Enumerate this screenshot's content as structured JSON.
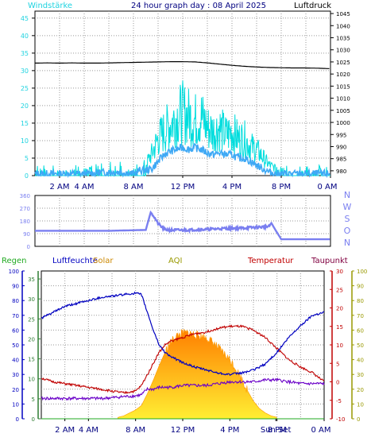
{
  "title": "24 hour graph day : 08 April 2025",
  "colors": {
    "background": "#ffffff",
    "plot_bg": "#ffffff",
    "grid": "#9a9a9a",
    "wind": "#1fd3e0",
    "gust": "#00dddd",
    "wind_avg": "#3fa9f5",
    "pressure": "#000000",
    "direction": "#7a7ff0",
    "humidity": "#0000c0",
    "temperature": "#c00000",
    "dewpoint": "#6a00c8",
    "solar": "#ff8c00",
    "rain_axis": "#2e7d32",
    "rain_label": "#22aa22",
    "aqi": "#999900",
    "taupunkt": "#800040"
  },
  "x_tick_labels": [
    "2 AM",
    "4 AM",
    "8 AM",
    "12 PM",
    "4 PM",
    "8 PM",
    "0 AM"
  ],
  "chart_data": [
    {
      "type": "line",
      "title": "24 hour graph day : 08 April 2025",
      "left_axis_label": "Windstärke",
      "right_axis_label": "Luftdruck",
      "y_left_ticks": [
        0,
        5,
        10,
        15,
        20,
        25,
        30,
        35,
        40,
        45
      ],
      "y_left_range": [
        0,
        47
      ],
      "y_right_ticks": [
        980,
        985,
        990,
        995,
        1000,
        1005,
        1010,
        1015,
        1020,
        1025,
        1030,
        1035,
        1040,
        1045
      ],
      "y_right_range": [
        978,
        1046
      ],
      "x_range_hours": [
        0,
        24
      ],
      "grid": true,
      "series": [
        {
          "name": "Luftdruck",
          "axis": "right",
          "x_hours": [
            0,
            1,
            2,
            3,
            4,
            5,
            6,
            7,
            8,
            9,
            10,
            11,
            12,
            13,
            14,
            15,
            16,
            17,
            18,
            19,
            20,
            21,
            22,
            23,
            24
          ],
          "values": [
            1024.5,
            1024.6,
            1024.5,
            1024.6,
            1024.5,
            1024.5,
            1024.6,
            1024.7,
            1024.8,
            1024.9,
            1025.0,
            1025.1,
            1025.1,
            1025.0,
            1024.6,
            1024.1,
            1023.6,
            1023.2,
            1022.9,
            1022.7,
            1022.6,
            1022.5,
            1022.5,
            1022.4,
            1022.2
          ]
        },
        {
          "name": "Wind gust",
          "axis": "left",
          "x_hours": [
            0,
            2,
            4,
            6,
            7,
            8,
            8.5,
            9,
            9.5,
            10,
            10.5,
            11,
            11.5,
            12,
            12.5,
            13,
            13.5,
            14,
            14.5,
            15,
            15.5,
            16,
            16.5,
            17,
            17.5,
            18,
            18.5,
            19,
            19.5,
            20,
            21,
            22,
            23,
            24
          ],
          "values": [
            1,
            1,
            1,
            2,
            2,
            1,
            3,
            3,
            6,
            10,
            12,
            14,
            16,
            17,
            16,
            15,
            16,
            13,
            12,
            13,
            11,
            12,
            10,
            10,
            8,
            7,
            5,
            3,
            2,
            1,
            1,
            1,
            1,
            1
          ]
        },
        {
          "name": "Wind average",
          "axis": "left",
          "x_hours": [
            0,
            2,
            4,
            6,
            7,
            8,
            8.5,
            9,
            9.5,
            10,
            10.5,
            11,
            11.5,
            12,
            12.5,
            13,
            13.5,
            14,
            14.5,
            15,
            15.5,
            16,
            16.5,
            17,
            17.5,
            18,
            18.5,
            19,
            19.5,
            20,
            21,
            22,
            23,
            24
          ],
          "values": [
            0.5,
            0.5,
            0.5,
            1,
            1,
            0.5,
            1.5,
            1.5,
            2,
            4,
            6,
            7,
            7.5,
            8,
            7.5,
            8,
            7.5,
            6.5,
            6,
            6.5,
            6,
            6,
            5,
            5,
            4,
            3,
            2,
            1,
            0.5,
            0.5,
            0.5,
            0.5,
            0.5,
            0.5
          ]
        }
      ]
    },
    {
      "type": "line",
      "title": "",
      "y_left_ticks": [
        0,
        90,
        180,
        270,
        360
      ],
      "y_left_range": [
        0,
        360
      ],
      "right_labels": [
        "N",
        "W",
        "S",
        "O",
        "N"
      ],
      "grid": true,
      "series": [
        {
          "name": "Windrichtung",
          "x_hours": [
            0,
            1,
            2,
            3,
            4,
            5,
            6,
            7,
            8,
            9,
            9.4,
            9.6,
            10,
            10.5,
            11,
            12,
            13,
            14,
            15,
            16,
            17,
            18,
            19,
            19.2,
            19.5,
            20,
            21,
            22,
            23,
            24
          ],
          "values": [
            110,
            110,
            110,
            110,
            110,
            110,
            110,
            112,
            114,
            116,
            240,
            220,
            160,
            120,
            115,
            115,
            118,
            120,
            125,
            128,
            130,
            135,
            140,
            165,
            120,
            50,
            50,
            50,
            50,
            50
          ]
        }
      ]
    },
    {
      "type": "line",
      "title": "",
      "legend": [
        "Regen",
        "Luftfeuchte",
        "Solar",
        "AQI",
        "Temperatur",
        "Taupunkt"
      ],
      "y_humidity_ticks": [
        0,
        10,
        20,
        30,
        40,
        50,
        60,
        70,
        80,
        90,
        100
      ],
      "y_rain_ticks": [
        0,
        5,
        10,
        15,
        20,
        25,
        30,
        35
      ],
      "y_temp_ticks": [
        -10,
        -5,
        0,
        5,
        10,
        15,
        20,
        25,
        30
      ],
      "y_aqi_ticks": [
        0,
        10,
        20,
        30,
        40,
        50,
        60,
        70,
        80,
        90,
        100
      ],
      "x_labels": [
        "2 AM",
        "4 AM",
        "8 AM",
        "12 PM",
        "4 PM",
        "Sun Set",
        "8 PM",
        "0 AM"
      ],
      "sunset_hour": 19.9,
      "grid": true,
      "series": [
        {
          "name": "Luftfeuchte",
          "axis": "humidity",
          "x_hours": [
            0,
            1,
            2,
            3,
            4,
            5,
            6,
            7,
            8,
            8.5,
            9,
            9.5,
            10,
            10.5,
            11,
            12,
            13,
            14,
            15,
            16,
            17,
            18,
            19,
            20,
            21,
            22,
            23,
            24
          ],
          "values": [
            68,
            72,
            76,
            78,
            80,
            82,
            83,
            84,
            85,
            84,
            72,
            60,
            50,
            45,
            42,
            38,
            35,
            33,
            31,
            30,
            31,
            33,
            37,
            45,
            55,
            63,
            70,
            72
          ]
        },
        {
          "name": "Temperatur",
          "axis": "temp",
          "x_hours": [
            0,
            1,
            2,
            3,
            4,
            5,
            6,
            7,
            8,
            8.5,
            9,
            9.5,
            10,
            10.5,
            11,
            12,
            13,
            14,
            15,
            16,
            17,
            18,
            19,
            20,
            21,
            22,
            23,
            24
          ],
          "values": [
            1,
            0,
            -0.5,
            -1,
            -1.5,
            -2,
            -2.5,
            -3,
            -2.5,
            -1,
            2,
            5,
            8,
            10,
            11,
            12,
            13,
            13.5,
            14.5,
            15,
            15,
            14,
            12,
            9,
            6,
            4,
            2.5,
            0
          ]
        },
        {
          "name": "Taupunkt",
          "axis": "temp",
          "x_hours": [
            0,
            1,
            2,
            3,
            4,
            5,
            6,
            7,
            8,
            8.5,
            9,
            9.5,
            10,
            11,
            12,
            13,
            14,
            15,
            16,
            17,
            18,
            19,
            20,
            21,
            22,
            23,
            24
          ],
          "values": [
            -4.5,
            -4.5,
            -4.5,
            -4.5,
            -4.5,
            -4.5,
            -4.3,
            -4,
            -3.8,
            -3.5,
            -2,
            -2,
            -1.5,
            -1.5,
            -1,
            -1,
            -1,
            -0.5,
            0,
            0,
            0,
            0.5,
            0.5,
            0,
            -0.5,
            -0.5,
            -0.5
          ]
        },
        {
          "name": "Solar",
          "axis": "solar",
          "x_hours": [
            6.5,
            7,
            7.5,
            8,
            8.5,
            9,
            9.5,
            10,
            10.5,
            11,
            11.5,
            12,
            12.5,
            13,
            13.5,
            14,
            14.5,
            15,
            15.5,
            16,
            16.5,
            17,
            17.5,
            18,
            18.5,
            19,
            19.5,
            20
          ],
          "values": [
            1,
            2,
            4,
            6,
            9,
            17,
            26,
            36,
            45,
            52,
            56,
            58,
            58,
            57,
            56,
            55,
            52,
            48,
            44,
            40,
            34,
            27,
            19,
            12,
            7,
            4,
            2,
            1
          ]
        },
        {
          "name": "Regen",
          "axis": "rain",
          "x_hours": [
            0,
            24
          ],
          "values": [
            0,
            0
          ]
        }
      ]
    }
  ]
}
